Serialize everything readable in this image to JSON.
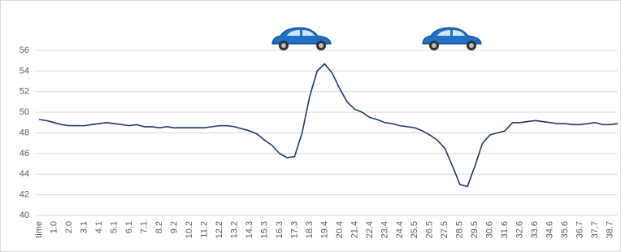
{
  "chart_data": {
    "type": "line",
    "categories": [
      "time",
      null,
      "1.0",
      null,
      "2.0",
      null,
      "3.1",
      null,
      "4.1",
      null,
      "5.1",
      null,
      "6.1",
      null,
      "7.1",
      null,
      "8.2",
      null,
      "9.2",
      null,
      "10.2",
      null,
      "11.2",
      null,
      "12.2",
      null,
      "13.2",
      null,
      "14.3",
      null,
      "15.3",
      null,
      "16.3",
      null,
      "17.3",
      null,
      "18.3",
      null,
      "19.4",
      null,
      "20.4",
      null,
      "21.4",
      null,
      "22.4",
      null,
      "23.4",
      null,
      "24.4",
      null,
      "25.5",
      null,
      "26.5",
      null,
      "27.5",
      null,
      "28.5",
      null,
      "29.5",
      null,
      "30.6",
      null,
      "31.6",
      null,
      "32.6",
      null,
      "33.6",
      null,
      "34.6",
      null,
      "35.6",
      null,
      "36.7",
      null,
      "37.7",
      null,
      "38.7",
      null
    ],
    "values": [
      49.3,
      49.2,
      49.0,
      48.8,
      48.7,
      48.7,
      48.7,
      48.8,
      48.9,
      49.0,
      48.9,
      48.8,
      48.7,
      48.8,
      48.6,
      48.6,
      48.5,
      48.6,
      48.5,
      48.5,
      48.5,
      48.5,
      48.5,
      48.6,
      48.7,
      48.7,
      48.6,
      48.4,
      48.2,
      47.9,
      47.3,
      46.8,
      46.0,
      45.6,
      45.7,
      48.0,
      51.5,
      54.0,
      54.7,
      53.8,
      52.3,
      51.0,
      50.3,
      50.0,
      49.5,
      49.3,
      49.0,
      48.9,
      48.7,
      48.6,
      48.5,
      48.2,
      47.8,
      47.3,
      46.5,
      44.8,
      43.0,
      42.8,
      44.8,
      47.0,
      47.8,
      48.0,
      48.2,
      49.0,
      49.0,
      49.1,
      49.2,
      49.1,
      49.0,
      48.9,
      48.9,
      48.8,
      48.8,
      48.9,
      49.0,
      48.8,
      48.8,
      48.9
    ],
    "color": "#1f3864",
    "ylim": [
      40,
      56
    ],
    "yticks": [
      40,
      42,
      44,
      46,
      48,
      50,
      52,
      54,
      56
    ],
    "grid": true
  }
}
